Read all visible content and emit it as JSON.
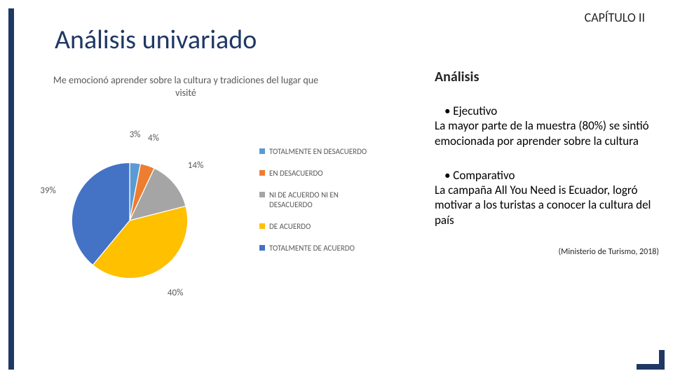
{
  "chapter": "CAPÍTULO II",
  "title": "Análisis univariado",
  "chart": {
    "title": "Me emocionó aprender sobre la cultura y tradiciones del lugar que visité",
    "type": "pie",
    "slices": [
      {
        "label": "TOTALMENTE EN DESACUERDO",
        "value": 3,
        "pct": "3%",
        "color": "#5b9bd5"
      },
      {
        "label": "EN DESACUERDO",
        "value": 4,
        "pct": "4%",
        "color": "#ed7d31"
      },
      {
        "label": "NI DE ACUERDO NI EN DESACUERDO",
        "value": 14,
        "pct": "14%",
        "color": "#a5a5a5"
      },
      {
        "label": "DE ACUERDO",
        "value": 40,
        "pct": "40%",
        "color": "#ffc000"
      },
      {
        "label": "TOTALMENTE DE ACUERDO",
        "value": 39,
        "pct": "39%",
        "color": "#4472c4"
      }
    ],
    "label_fontsize": 13,
    "legend_fontsize": 11,
    "title_fontsize": 14,
    "background": "#ffffff"
  },
  "analysis": {
    "heading": "Análisis",
    "blocks": [
      {
        "bullet": "Ejecutivo",
        "text": "La mayor parte de la muestra (80%) se sintió emocionada por aprender sobre la cultura"
      },
      {
        "bullet": "Comparativo",
        "text": "La campaña All You Need is Ecuador, logró motivar a los turistas a conocer la cultura del país"
      }
    ],
    "source": "(Ministerio de Turismo, 2018)"
  },
  "frame_color": "#1f3864"
}
